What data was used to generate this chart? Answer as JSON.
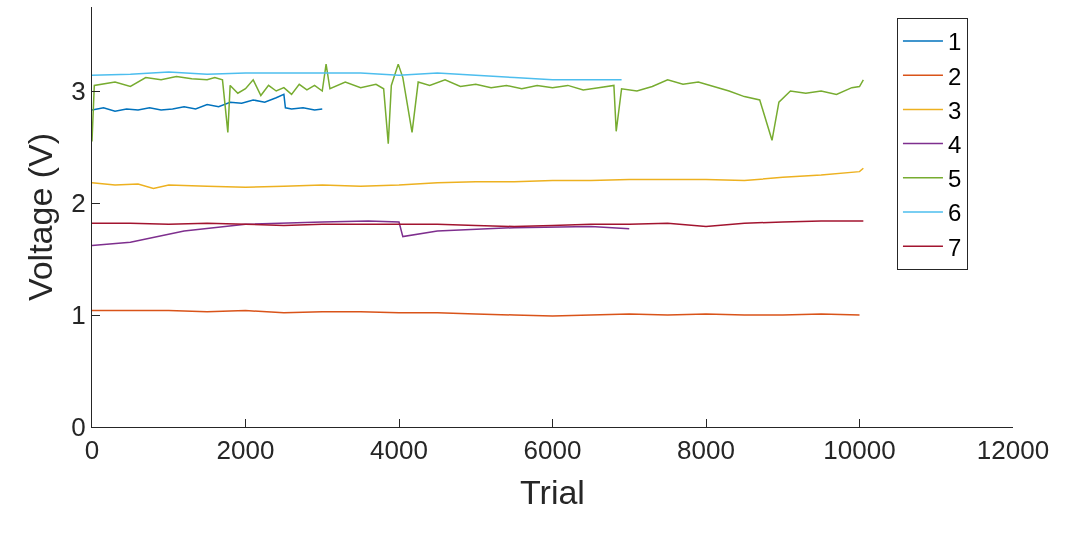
{
  "chart_data": {
    "type": "line",
    "xlabel": "Trial",
    "ylabel": "Voltage (V)",
    "xlim": [
      0,
      12000
    ],
    "xticks": [
      0,
      2000,
      4000,
      6000,
      8000,
      10000,
      12000
    ],
    "ylim": [
      0,
      3.75
    ],
    "yticks": [
      0,
      1,
      2,
      3
    ],
    "grid": false,
    "legend": "top right",
    "marker": "none",
    "line_style": "solid",
    "series": [
      {
        "name": "1",
        "color": "#0072bd",
        "x": [
          0,
          150,
          300,
          450,
          600,
          750,
          900,
          1050,
          1200,
          1350,
          1500,
          1650,
          1800,
          1950,
          2100,
          2250,
          2400,
          2500,
          2520,
          2600,
          2750,
          2900,
          3000
        ],
        "values": [
          2.83,
          2.85,
          2.82,
          2.84,
          2.83,
          2.85,
          2.83,
          2.84,
          2.86,
          2.84,
          2.88,
          2.86,
          2.9,
          2.89,
          2.92,
          2.9,
          2.94,
          2.97,
          2.85,
          2.84,
          2.85,
          2.83,
          2.84
        ]
      },
      {
        "name": "2",
        "color": "#d95319",
        "x": [
          0,
          500,
          1000,
          1500,
          2000,
          2500,
          3000,
          3500,
          4000,
          4500,
          5000,
          5500,
          6000,
          6500,
          7000,
          7500,
          8000,
          8500,
          9000,
          9500,
          10000
        ],
        "values": [
          1.04,
          1.04,
          1.04,
          1.03,
          1.04,
          1.02,
          1.03,
          1.03,
          1.02,
          1.02,
          1.01,
          1.0,
          0.99,
          1.0,
          1.01,
          1.0,
          1.01,
          1.0,
          1.0,
          1.01,
          1.0
        ]
      },
      {
        "name": "3",
        "color": "#edb120",
        "x": [
          0,
          300,
          600,
          800,
          1000,
          1500,
          2000,
          2500,
          3000,
          3500,
          4000,
          4500,
          5000,
          5500,
          6000,
          6500,
          7000,
          7500,
          8000,
          8500,
          9000,
          9500,
          10000,
          10050
        ],
        "values": [
          2.18,
          2.16,
          2.17,
          2.13,
          2.16,
          2.15,
          2.14,
          2.15,
          2.16,
          2.15,
          2.16,
          2.18,
          2.19,
          2.19,
          2.2,
          2.2,
          2.21,
          2.21,
          2.21,
          2.2,
          2.23,
          2.25,
          2.28,
          2.31
        ]
      },
      {
        "name": "4",
        "color": "#7e2f8e",
        "x": [
          0,
          500,
          1200,
          2000,
          3000,
          3600,
          4000,
          4050,
          4500,
          5500,
          6500,
          7000
        ],
        "values": [
          1.62,
          1.65,
          1.75,
          1.81,
          1.83,
          1.84,
          1.83,
          1.7,
          1.75,
          1.78,
          1.79,
          1.77
        ]
      },
      {
        "name": "5",
        "color": "#77ac30",
        "x": [
          0,
          30,
          300,
          500,
          700,
          900,
          1100,
          1300,
          1500,
          1600,
          1700,
          1770,
          1800,
          1900,
          2000,
          2100,
          2200,
          2300,
          2400,
          2500,
          2600,
          2700,
          2800,
          2900,
          3000,
          3050,
          3100,
          3300,
          3500,
          3700,
          3800,
          3860,
          3900,
          3990,
          4050,
          4170,
          4250,
          4400,
          4600,
          4800,
          5000,
          5200,
          5400,
          5600,
          5800,
          6000,
          6200,
          6400,
          6600,
          6800,
          6830,
          6900,
          7100,
          7300,
          7500,
          7700,
          7900,
          8100,
          8300,
          8500,
          8700,
          8860,
          8950,
          9100,
          9300,
          9500,
          9700,
          9900,
          10000,
          10050
        ],
        "values": [
          2.55,
          3.05,
          3.08,
          3.04,
          3.12,
          3.1,
          3.13,
          3.11,
          3.1,
          3.12,
          3.1,
          2.63,
          3.05,
          2.98,
          3.02,
          3.1,
          2.96,
          3.05,
          3.0,
          3.03,
          2.97,
          3.06,
          3.01,
          3.05,
          3.0,
          3.24,
          3.02,
          3.08,
          3.03,
          3.06,
          3.02,
          2.53,
          3.05,
          3.24,
          3.12,
          2.63,
          3.08,
          3.05,
          3.1,
          3.04,
          3.06,
          3.03,
          3.05,
          3.02,
          3.05,
          3.03,
          3.05,
          3.01,
          3.03,
          3.05,
          2.64,
          3.02,
          3.0,
          3.04,
          3.1,
          3.06,
          3.08,
          3.04,
          3.0,
          2.95,
          2.92,
          2.56,
          2.9,
          3.0,
          2.98,
          3.0,
          2.97,
          3.03,
          3.04,
          3.1
        ]
      },
      {
        "name": "6",
        "color": "#4dbeee",
        "x": [
          0,
          500,
          1000,
          1500,
          2000,
          2500,
          3000,
          3500,
          4000,
          4500,
          5000,
          5500,
          6000,
          6500,
          6900
        ],
        "values": [
          3.14,
          3.15,
          3.17,
          3.15,
          3.16,
          3.16,
          3.16,
          3.16,
          3.14,
          3.16,
          3.14,
          3.12,
          3.1,
          3.1,
          3.1
        ]
      },
      {
        "name": "7",
        "color": "#a2142f",
        "x": [
          0,
          500,
          1000,
          1500,
          2000,
          2500,
          3000,
          3500,
          4000,
          4500,
          5000,
          5500,
          6000,
          6500,
          7000,
          7500,
          8000,
          8500,
          9000,
          9500,
          10050
        ],
        "values": [
          1.82,
          1.82,
          1.81,
          1.82,
          1.81,
          1.8,
          1.81,
          1.81,
          1.81,
          1.81,
          1.8,
          1.79,
          1.8,
          1.81,
          1.81,
          1.82,
          1.79,
          1.82,
          1.83,
          1.84,
          1.84
        ]
      }
    ]
  }
}
